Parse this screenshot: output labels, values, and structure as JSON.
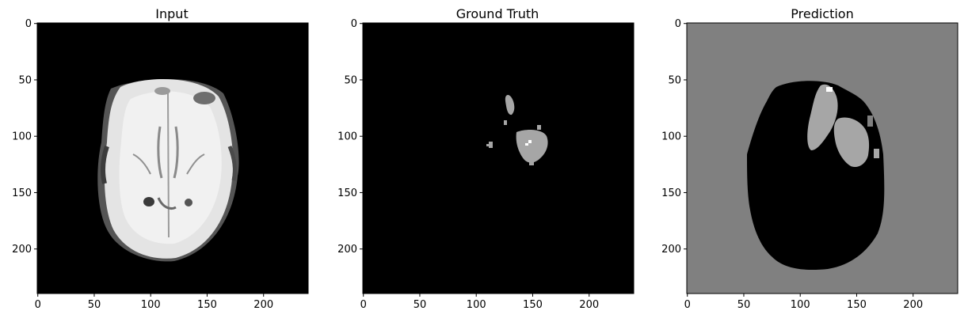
{
  "chart_data": [
    {
      "type": "heatmap",
      "title": "Input",
      "content": "grayscale axial brain MRI slice",
      "xlim": [
        0,
        240
      ],
      "ylim": [
        240,
        0
      ],
      "xticks": [
        "0",
        "50",
        "100",
        "150",
        "200"
      ],
      "yticks": [
        "0",
        "50",
        "100",
        "150",
        "200"
      ],
      "grid": false,
      "colors": {
        "background": "#000000",
        "tissue": "#e6e6e6"
      }
    },
    {
      "type": "heatmap",
      "title": "Ground Truth",
      "content": "segmentation mask; small grey lesion regions on black background",
      "xlim": [
        0,
        240
      ],
      "ylim": [
        240,
        0
      ],
      "xticks": [
        "0",
        "50",
        "100",
        "150",
        "200"
      ],
      "yticks": [
        "0",
        "50",
        "100",
        "150",
        "200"
      ],
      "grid": false,
      "colors": {
        "background": "#000000",
        "mask": "#a6a6a6",
        "highlight": "#ffffff"
      }
    },
    {
      "type": "heatmap",
      "title": "Prediction",
      "content": "predicted mask; grey background, black brain region, grey lesion regions",
      "xlim": [
        0,
        240
      ],
      "ylim": [
        240,
        0
      ],
      "xticks": [
        "0",
        "50",
        "100",
        "150",
        "200"
      ],
      "yticks": [
        "0",
        "50",
        "100",
        "150",
        "200"
      ],
      "grid": false,
      "colors": {
        "background": "#808080",
        "brain": "#000000",
        "lesion": "#a6a6a6",
        "highlight": "#ffffff"
      }
    }
  ]
}
